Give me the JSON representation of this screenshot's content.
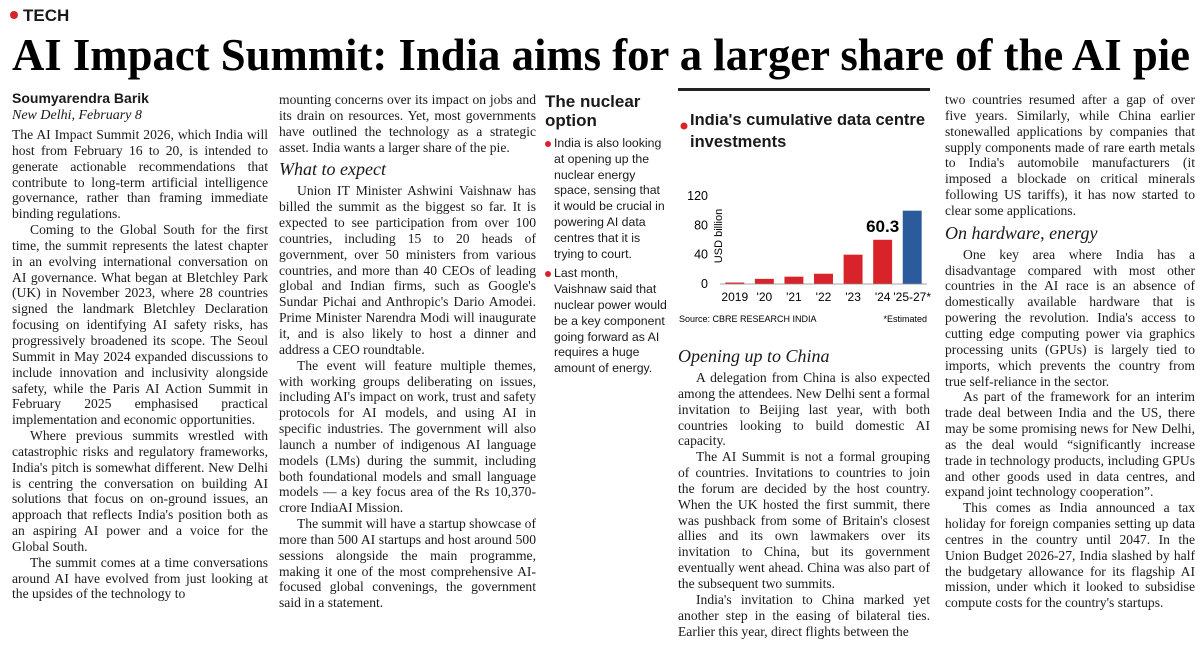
{
  "section": "TECH",
  "headline": "AI Impact Summit: India aims for a larger share of the AI pie",
  "byline": {
    "author": "Soumyarendra Barik",
    "dateline": "New Delhi, February 8"
  },
  "columns": [
    [
      {
        "text": "The AI Impact Summit 2026, which India will host from February 16 to 20, is intended to generate actionable recommendations that contribute to long-term artificial intelligence governance, rather than framing immediate binding regulations."
      },
      {
        "text": "Coming to the Global South for the first time, the summit represents the latest chapter in an evolving international conversation on AI governance. What began at Bletchley Park (UK) in November 2023, where 28 countries signed the landmark Bletchley Declaration focusing on identifying AI safety risks, has progressively broadened its scope. The Seoul Summit in May 2024 expanded discussions to include innovation and inclusivity alongside safety, while the Paris AI Action Summit in February 2025 emphasised practical implementation and economic opportunities."
      },
      {
        "text": "Where previous summits wrestled with catastrophic risks and regulatory frameworks, India's pitch is somewhat different. New Delhi is centring the conversation on building AI solutions that focus on on-ground issues, an approach that reflects India's position both as an aspiring AI power and a voice for the Global South."
      },
      {
        "text": "The summit comes at a time conversations around AI have evolved from just looking at the upsides of the technology to"
      }
    ],
    [
      {
        "text": "mounting concerns over its impact on jobs and its drain on resources. Yet, most governments have outlined the technology as a strategic asset. India wants a larger share of the pie."
      },
      {
        "heading": "What to expect"
      },
      {
        "text": "Union IT Minister Ashwini Vaishnaw has billed the summit as the biggest so far. It is expected to see participation from over 100 countries, including 15 to 20 heads of government, over 50 ministers from various countries, and more than 40 CEOs of leading global and Indian firms, such as Google's Sundar Pichai and Anthropic's Dario Amodei. Prime Minister Narendra Modi will inaugurate it, and is also likely to host a dinner and address a CEO roundtable."
      },
      {
        "text": "The event will feature multiple themes, with working groups deliberating on issues, including AI's impact on work, trust and safety protocols for AI models, and using AI in specific industries. The government will also launch a number of indigenous AI language models (LMs) during the summit, including both foundational models and small language models — a key focus area of the Rs 10,370-crore IndiaAI Mission."
      },
      {
        "text": "The summit will have a startup showcase of more than 500 AI startups and host around 500 sessions alongside the main programme, making it one of the most comprehensive AI-focused global convenings, the government said in a statement."
      }
    ],
    [
      {
        "heading": "Opening up to China"
      },
      {
        "text": "A delegation from China is also expected among the attendees. New Delhi sent a formal invitation to Beijing last year, with both countries looking to build domestic AI capacity."
      },
      {
        "text": "The AI Summit is not a formal grouping of countries. Invitations to countries to join the forum are decided by the host country. When the UK hosted the first summit, there was pushback from some of Britain's closest allies and its own lawmakers over its invitation to China, but its government eventually went ahead. China was also part of the subsequent two summits."
      },
      {
        "text": "India's invitation to China marked yet another step in the easing of bilateral ties. Earlier this year, direct flights between the"
      }
    ],
    [
      {
        "text": "two countries resumed after a gap of over five years. Similarly, while China earlier stonewalled applications by companies that supply components made of rare earth metals to India's automobile manufacturers (it imposed a blockade on critical minerals following US tariffs), it has now started to clear some applications."
      },
      {
        "heading": "On hardware, energy"
      },
      {
        "text": "One key area where India has a disadvantage compared with most other countries in the AI race is an absence of domestically available hardware that is powering the revolution. India's access to cutting edge computing power via graphics processing units (GPUs) is largely tied to imports, which prevents the country from true self-reliance in the sector."
      },
      {
        "text": "As part of the framework for an interim trade deal between India and the US, there may be some promising news for New Delhi, as the deal would “significantly increase trade in technology products, including GPUs and other goods used in data centres, and expand joint technology cooperation”."
      },
      {
        "text": "This comes as India announced a tax holiday for foreign companies setting up data centres in the country until 2047. In the Union Budget 2026-27, India slashed by half the budgetary allowance for its flagship AI mission, under which it looked to subsidise compute costs for the country's startups."
      }
    ]
  ],
  "sidebar": {
    "title": "The nuclear option",
    "bullets": [
      "India is also looking at opening up the nuclear energy space, sensing that it would be crucial in powering AI data centres that it is trying to court.",
      "Last month, Vaishnaw said that nuclear power would be a key component going forward as AI requires a huge amount of energy."
    ]
  },
  "chart_data": {
    "type": "bar",
    "title": "India's cumulative data centre investments",
    "y_label": "USD billion",
    "categories": [
      "2019",
      "'20",
      "'21",
      "'22",
      "'23",
      "'24",
      "'25-27*"
    ],
    "values": [
      2,
      7,
      10,
      14,
      40,
      60.3,
      100
    ],
    "value_labels": [
      null,
      null,
      null,
      null,
      null,
      "60.3",
      null
    ],
    "colors": [
      "#d8232a",
      "#d8232a",
      "#d8232a",
      "#d8232a",
      "#d8232a",
      "#d8232a",
      "#2b5b9c"
    ],
    "ylim": [
      0,
      120
    ],
    "yticks": [
      0,
      40,
      80,
      120
    ],
    "grid": false,
    "source": "Source: CBRE RESEARCH INDIA",
    "note": "*Estimated"
  }
}
